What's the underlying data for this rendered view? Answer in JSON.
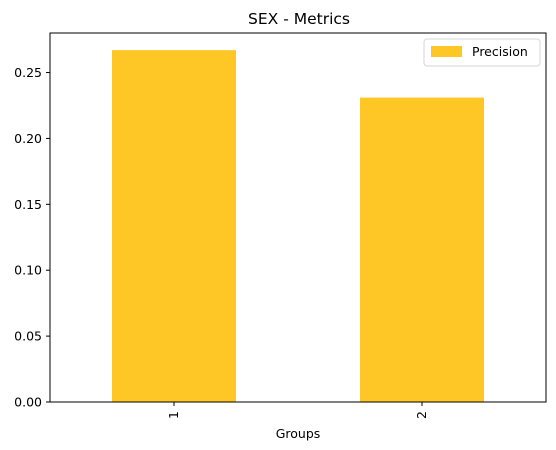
{
  "chart_data": {
    "type": "bar",
    "title": "SEX - Metrics",
    "xlabel": "Groups",
    "ylabel": "",
    "categories": [
      "1",
      "2"
    ],
    "series": [
      {
        "name": "Precision",
        "values": [
          0.267,
          0.231
        ],
        "color": "#fec726"
      }
    ],
    "ylim": [
      0,
      0.28
    ],
    "yticks": [
      0.0,
      0.05,
      0.1,
      0.15,
      0.2,
      0.25
    ],
    "ytick_labels": [
      "0.00",
      "0.05",
      "0.10",
      "0.15",
      "0.20",
      "0.25"
    ],
    "grid": false,
    "legend_position": "top-right"
  }
}
